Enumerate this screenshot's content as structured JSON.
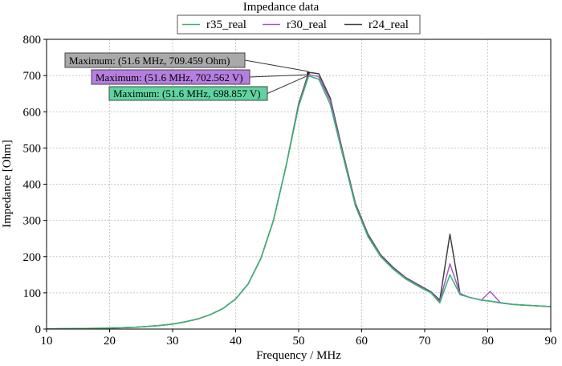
{
  "chart_data": {
    "type": "line",
    "title": "Impedance data",
    "xlabel": "Frequency / MHz",
    "ylabel": "Impedance [Ohm]",
    "xlim": [
      10,
      90
    ],
    "ylim": [
      0,
      800
    ],
    "xticks": [
      10,
      20,
      30,
      40,
      50,
      60,
      70,
      80,
      90
    ],
    "yticks": [
      0,
      100,
      200,
      300,
      400,
      500,
      600,
      700,
      800
    ],
    "grid": true,
    "legend_position": "top-center",
    "series": [
      {
        "name": "r35_real",
        "color": "#3cb371",
        "x": [
          10,
          12,
          14,
          16,
          18,
          20,
          22,
          24,
          26,
          28,
          30,
          32,
          34,
          36,
          38,
          40,
          42,
          44,
          46,
          48,
          50,
          51.6,
          53.2,
          55,
          57,
          59,
          61,
          63,
          65,
          67,
          69,
          71,
          72.4,
          74,
          75.6,
          77,
          79,
          80.4,
          82,
          84,
          86,
          88,
          90
        ],
        "y": [
          0.5,
          0.8,
          1,
          1.5,
          2,
          3,
          4,
          5,
          7,
          10,
          14,
          20,
          28,
          40,
          57,
          83,
          125,
          195,
          300,
          450,
          615,
          699,
          690,
          620,
          480,
          340,
          255,
          200,
          165,
          138,
          118,
          100,
          72,
          150,
          95,
          88,
          80,
          77,
          72,
          68,
          66,
          64,
          62
        ]
      },
      {
        "name": "r30_real",
        "color": "#a05bc8",
        "x": [
          10,
          12,
          14,
          16,
          18,
          20,
          22,
          24,
          26,
          28,
          30,
          32,
          34,
          36,
          38,
          40,
          42,
          44,
          46,
          48,
          50,
          51.6,
          53.2,
          55,
          57,
          59,
          61,
          63,
          65,
          67,
          69,
          71,
          72.4,
          74,
          75.6,
          77,
          79,
          80.4,
          82,
          84,
          86,
          88,
          90
        ],
        "y": [
          0.5,
          0.8,
          1,
          1.5,
          2,
          3,
          4,
          5,
          7,
          10,
          14,
          20,
          28,
          40,
          57,
          83,
          125,
          195,
          300,
          450,
          618,
          703,
          697,
          630,
          485,
          343,
          258,
          202,
          167,
          140,
          120,
          101,
          76,
          180,
          98,
          88,
          80,
          104,
          73,
          68,
          66,
          64,
          62
        ]
      },
      {
        "name": "r24_real",
        "color": "#404040",
        "x": [
          10,
          12,
          14,
          16,
          18,
          20,
          22,
          24,
          26,
          28,
          30,
          32,
          34,
          36,
          38,
          40,
          42,
          44,
          46,
          48,
          50,
          51.6,
          53.2,
          55,
          57,
          59,
          61,
          63,
          65,
          67,
          69,
          71,
          72.4,
          74,
          75.6,
          77,
          79,
          80.4,
          82,
          84,
          86,
          88,
          90
        ],
        "y": [
          0.5,
          0.8,
          1,
          1.5,
          2,
          3,
          4,
          5,
          7,
          10,
          14,
          20,
          28,
          40,
          57,
          83,
          125,
          195,
          300,
          450,
          622,
          709,
          705,
          638,
          490,
          347,
          262,
          205,
          170,
          142,
          122,
          103,
          80,
          262,
          98,
          88,
          80,
          77,
          73,
          68,
          66,
          64,
          62
        ]
      }
    ],
    "annotations": [
      {
        "text": "Maximum: (51.6 MHz, 709.459 Ohm)",
        "x": 51.6,
        "y": 709.459,
        "color": "#a9a9a9"
      },
      {
        "text": "Maximum: (51.6 MHz, 702.562 V)",
        "x": 51.6,
        "y": 702.562,
        "color": "#b67ee0"
      },
      {
        "text": "Maximum: (51.6 MHz, 698.857 V)",
        "x": 51.6,
        "y": 698.857,
        "color": "#5fd4a0"
      }
    ]
  }
}
